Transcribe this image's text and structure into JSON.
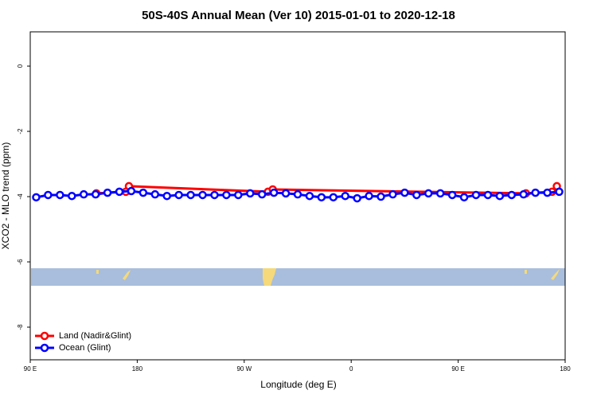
{
  "chart_data": {
    "type": "line",
    "title": "50S-40S Annual Mean (Ver 10)   2015-01-01 to 2020-12-18",
    "x_label": "Longitude (deg E)",
    "y_label": "XCO2 - MLO trend (ppm)",
    "xlim": [
      90,
      540
    ],
    "ylim": [
      -9,
      1.05
    ],
    "xticks": [
      {
        "value": 90,
        "label": "90 E"
      },
      {
        "value": 180,
        "label": "180"
      },
      {
        "value": 270,
        "label": "90 W"
      },
      {
        "value": 360,
        "label": "0"
      },
      {
        "value": 450,
        "label": "90 E"
      },
      {
        "value": 540,
        "label": "180"
      }
    ],
    "yticks": [
      0,
      -2,
      -4,
      -6,
      -8
    ],
    "legend": "bottom-left",
    "series": [
      {
        "name": "Land (Nadir&Glint)",
        "color": "#ff0000",
        "x": [
          145.6,
          170.4,
          173,
          290,
          294,
          507,
          529,
          533
        ],
        "values": [
          -3.9,
          -3.85,
          -3.68,
          -3.85,
          -3.78,
          -3.9,
          -3.85,
          -3.68
        ]
      },
      {
        "name": "Ocean (Glint)",
        "color": "#0000ff",
        "x": [
          95,
          105,
          115,
          125,
          135,
          145,
          155,
          165,
          175,
          185,
          195,
          205,
          215,
          225,
          235,
          245,
          255,
          265,
          275,
          285,
          295,
          305,
          315,
          325,
          335,
          345,
          355,
          365,
          375,
          385,
          395,
          405,
          415,
          425,
          435,
          445,
          455,
          465,
          475,
          485,
          495,
          505,
          515,
          525,
          535
        ],
        "values": [
          -4.02,
          -3.95,
          -3.95,
          -3.98,
          -3.93,
          -3.93,
          -3.88,
          -3.85,
          -3.83,
          -3.88,
          -3.93,
          -3.98,
          -3.95,
          -3.95,
          -3.95,
          -3.95,
          -3.95,
          -3.95,
          -3.9,
          -3.93,
          -3.88,
          -3.9,
          -3.93,
          -3.98,
          -4.02,
          -4.02,
          -3.98,
          -4.05,
          -3.98,
          -4.0,
          -3.93,
          -3.88,
          -3.95,
          -3.9,
          -3.9,
          -3.95,
          -4.02,
          -3.95,
          -3.95,
          -3.98,
          -3.95,
          -3.93,
          -3.88,
          -3.88,
          -3.85
        ]
      }
    ]
  }
}
